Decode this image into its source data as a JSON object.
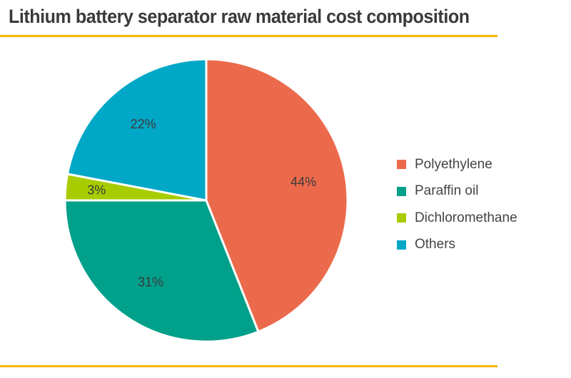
{
  "chart_data": {
    "type": "pie",
    "title": "Lithium battery separator raw material cost composition",
    "start_angle": "12 o'clock",
    "direction": "clockwise",
    "legend_position": "right",
    "slices": [
      {
        "name": "Polyethylene",
        "value": 44,
        "label": "44%",
        "color": "#EC6A4C"
      },
      {
        "name": "Paraffin oil",
        "value": 31,
        "label": "31%",
        "color": "#00A08A"
      },
      {
        "name": "Dichloromethane",
        "value": 3,
        "label": "3%",
        "color": "#A8CC00"
      },
      {
        "name": "Others",
        "value": 22,
        "label": "22%",
        "color": "#00A7C7"
      }
    ]
  },
  "accent_color": "#F5B800"
}
